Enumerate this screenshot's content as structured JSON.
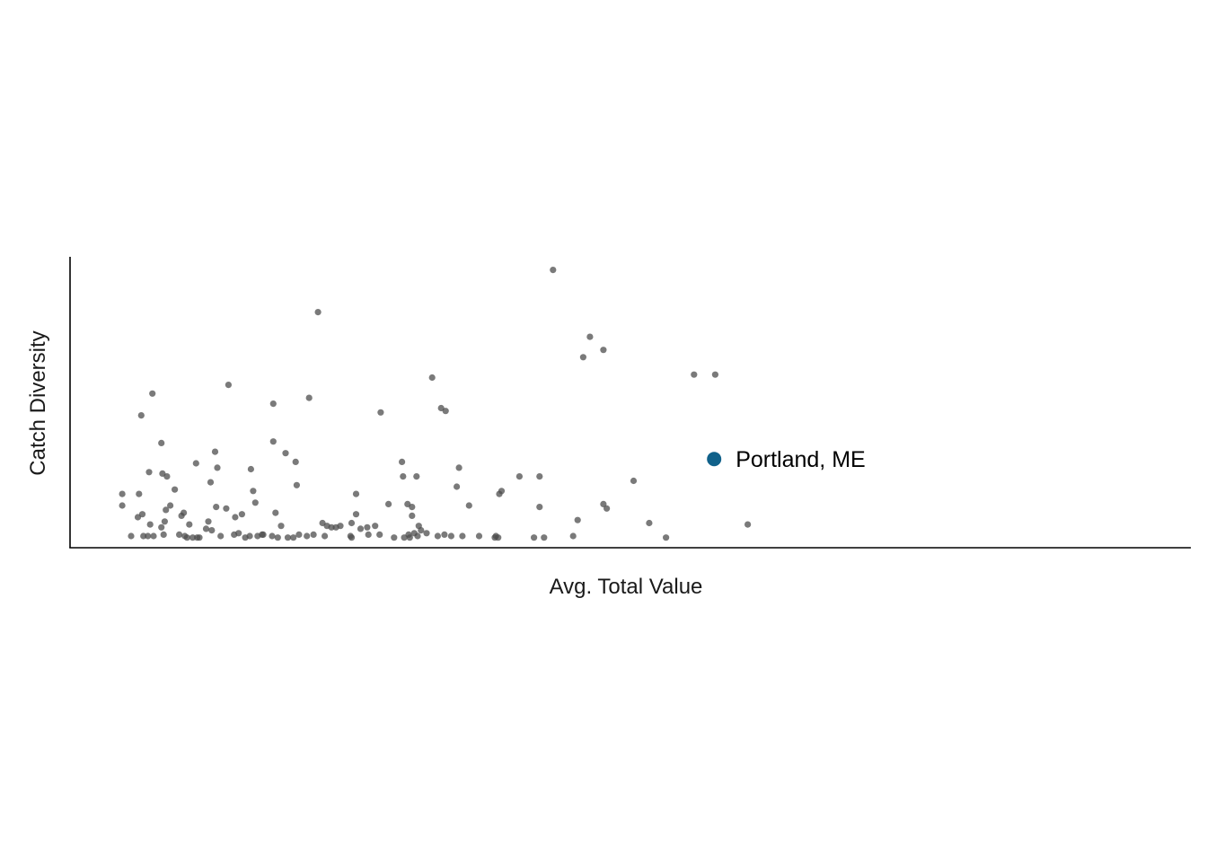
{
  "chart_data": {
    "type": "scatter",
    "title": "",
    "xlabel": "Avg. Total Value",
    "ylabel": "Catch Diversity",
    "xlim": [
      0,
      1000
    ],
    "ylim": [
      0,
      100
    ],
    "grid": false,
    "legend": "none",
    "colors": {
      "points": "#4d4d4d",
      "highlight": "#10618a",
      "axis": "#000000"
    },
    "points": [
      [
        45,
        18.5
      ],
      [
        45,
        14.5
      ],
      [
        53,
        4
      ],
      [
        59,
        10.5
      ],
      [
        60,
        18.5
      ],
      [
        62,
        45.5
      ],
      [
        63,
        11.5
      ],
      [
        64,
        4
      ],
      [
        68,
        4
      ],
      [
        69,
        26
      ],
      [
        70,
        8
      ],
      [
        72,
        53
      ],
      [
        73,
        4
      ],
      [
        80,
        7
      ],
      [
        80,
        36
      ],
      [
        81,
        25.5
      ],
      [
        82,
        4.5
      ],
      [
        83,
        9
      ],
      [
        84,
        13
      ],
      [
        85,
        24.5
      ],
      [
        88,
        14.5
      ],
      [
        92,
        20
      ],
      [
        96,
        4.5
      ],
      [
        98,
        11
      ],
      [
        100,
        12
      ],
      [
        101,
        4
      ],
      [
        103,
        3.5
      ],
      [
        105,
        8
      ],
      [
        108,
        3.5
      ],
      [
        111,
        29
      ],
      [
        112,
        3.5
      ],
      [
        114,
        3.5
      ],
      [
        120,
        6.5
      ],
      [
        122,
        9
      ],
      [
        124,
        22.5
      ],
      [
        125,
        6
      ],
      [
        128,
        33
      ],
      [
        129,
        14
      ],
      [
        130,
        27.5
      ],
      [
        133,
        4
      ],
      [
        138,
        13.5
      ],
      [
        140,
        56
      ],
      [
        145,
        4.5
      ],
      [
        146,
        10.5
      ],
      [
        149,
        5
      ],
      [
        152,
        11.5
      ],
      [
        155,
        3.5
      ],
      [
        159,
        4
      ],
      [
        160,
        27
      ],
      [
        162,
        19.5
      ],
      [
        164,
        15.5
      ],
      [
        166,
        4
      ],
      [
        170,
        4.5
      ],
      [
        171,
        4.5
      ],
      [
        179,
        4
      ],
      [
        180,
        36.5
      ],
      [
        180,
        49.5
      ],
      [
        182,
        12
      ],
      [
        184,
        3.5
      ],
      [
        187,
        7.5
      ],
      [
        191,
        32.5
      ],
      [
        193,
        3.5
      ],
      [
        198,
        3.5
      ],
      [
        200,
        29.5
      ],
      [
        201,
        21.5
      ],
      [
        203,
        4.5
      ],
      [
        210,
        4
      ],
      [
        212,
        51.5
      ],
      [
        216,
        4.5
      ],
      [
        220,
        81
      ],
      [
        224,
        8.5
      ],
      [
        226,
        4
      ],
      [
        228,
        7.5
      ],
      [
        232,
        7
      ],
      [
        236,
        7
      ],
      [
        240,
        7.5
      ],
      [
        249,
        4
      ],
      [
        250,
        8.5
      ],
      [
        250,
        3.5
      ],
      [
        254,
        18.5
      ],
      [
        254,
        11.5
      ],
      [
        258,
        6.5
      ],
      [
        264,
        7
      ],
      [
        265,
        4.5
      ],
      [
        271,
        7.5
      ],
      [
        275,
        4.5
      ],
      [
        276,
        46.5
      ],
      [
        283,
        15
      ],
      [
        288,
        3.5
      ],
      [
        295,
        29.5
      ],
      [
        296,
        24.5
      ],
      [
        297,
        3.5
      ],
      [
        300,
        15
      ],
      [
        301,
        4.5
      ],
      [
        302,
        3.5
      ],
      [
        304,
        11
      ],
      [
        304,
        14
      ],
      [
        306,
        5
      ],
      [
        308,
        24.5
      ],
      [
        309,
        4
      ],
      [
        310,
        7.5
      ],
      [
        312,
        6
      ],
      [
        317,
        5
      ],
      [
        322,
        58.5
      ],
      [
        327,
        4
      ],
      [
        330,
        48
      ],
      [
        333,
        4.5
      ],
      [
        334,
        47
      ],
      [
        339,
        4
      ],
      [
        344,
        21
      ],
      [
        346,
        27.5
      ],
      [
        349,
        4
      ],
      [
        355,
        14.5
      ],
      [
        364,
        4
      ],
      [
        378,
        3.5
      ],
      [
        379,
        4
      ],
      [
        381,
        3.5
      ],
      [
        382,
        18.5
      ],
      [
        384,
        19.5
      ],
      [
        400,
        24.5
      ],
      [
        413,
        3.5
      ],
      [
        418,
        14
      ],
      [
        418,
        24.5
      ],
      [
        422,
        3.5
      ],
      [
        430,
        95.5
      ],
      [
        448,
        4
      ],
      [
        452,
        9.5
      ],
      [
        457,
        65.5
      ],
      [
        463,
        72.5
      ],
      [
        475,
        68
      ],
      [
        475,
        15
      ],
      [
        478,
        13.5
      ],
      [
        502,
        23
      ],
      [
        516,
        8.5
      ],
      [
        531,
        3.5
      ],
      [
        556,
        59.5
      ],
      [
        575,
        59.5
      ],
      [
        604,
        8
      ]
    ],
    "highlight": {
      "label": "Portland, ME",
      "x": 574,
      "y": 30.5
    }
  }
}
